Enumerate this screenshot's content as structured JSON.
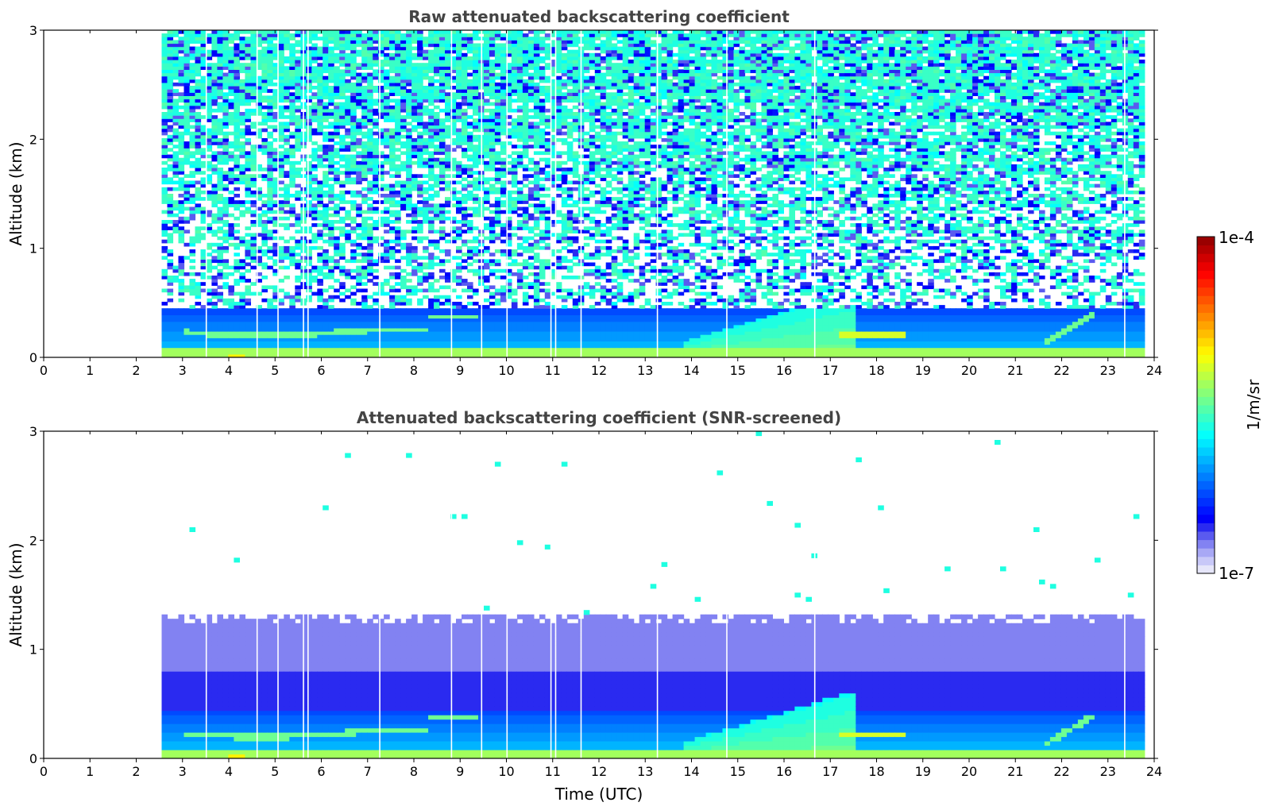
{
  "chart_data": [
    {
      "type": "heatmap",
      "title": "Raw attenuated backscattering coefficient",
      "xlabel": "",
      "ylabel": "Altitude (km)",
      "xlim": [
        0,
        24
      ],
      "ylim": [
        0,
        3
      ],
      "xticks": [
        "0",
        "1",
        "2",
        "3",
        "4",
        "5",
        "6",
        "7",
        "8",
        "9",
        "10",
        "11",
        "12",
        "13",
        "14",
        "15",
        "16",
        "17",
        "18",
        "19",
        "20",
        "21",
        "22",
        "23",
        "24"
      ],
      "yticks": [
        "0",
        "1",
        "2",
        "3"
      ],
      "data_time_range": [
        2.55,
        23.75
      ],
      "gaps_time": [
        3.5,
        4.6,
        5.05,
        5.6,
        5.7,
        7.25,
        8.8,
        9.45,
        10.0,
        10.95,
        11.05,
        11.6,
        13.25,
        14.75,
        16.65,
        23.35
      ],
      "noise_top_km": 3.0,
      "features": [
        {
          "name": "surface layer",
          "t0": 2.55,
          "t1": 23.75,
          "top_km": 0.12,
          "level": 0.55
        },
        {
          "name": "boundary layer",
          "t0": 2.55,
          "t1": 23.75,
          "top_km": 0.45,
          "level": 0.4
        },
        {
          "name": "rising plume",
          "t0": 14.0,
          "t1": 17.5,
          "top_km": 0.6,
          "level": 0.5
        },
        {
          "name": "aerosol streak",
          "t0": 8.3,
          "t1": 9.4,
          "alt_km": 0.37,
          "level": 0.5
        }
      ]
    },
    {
      "type": "heatmap",
      "title": "Attenuated backscattering coefficient (SNR-screened)",
      "xlabel": "Time (UTC)",
      "ylabel": "Altitude (km)",
      "xlim": [
        0,
        24
      ],
      "ylim": [
        0,
        3
      ],
      "xticks": [
        "0",
        "1",
        "2",
        "3",
        "4",
        "5",
        "6",
        "7",
        "8",
        "9",
        "10",
        "11",
        "12",
        "13",
        "14",
        "15",
        "16",
        "17",
        "18",
        "19",
        "20",
        "21",
        "22",
        "23",
        "24"
      ],
      "yticks": [
        "0",
        "1",
        "2",
        "3"
      ],
      "data_time_range": [
        2.55,
        23.75
      ],
      "screen_top_km": 1.3,
      "gaps_time": [
        3.5,
        4.6,
        5.05,
        5.6,
        5.7,
        7.25,
        8.8,
        9.45,
        10.0,
        10.95,
        11.05,
        11.6,
        13.25,
        14.75,
        16.65,
        23.35
      ]
    }
  ],
  "colorbar": {
    "max_label": "1e-4",
    "min_label": "1e-7",
    "units": "1/m/sr",
    "colormap": "jet"
  }
}
